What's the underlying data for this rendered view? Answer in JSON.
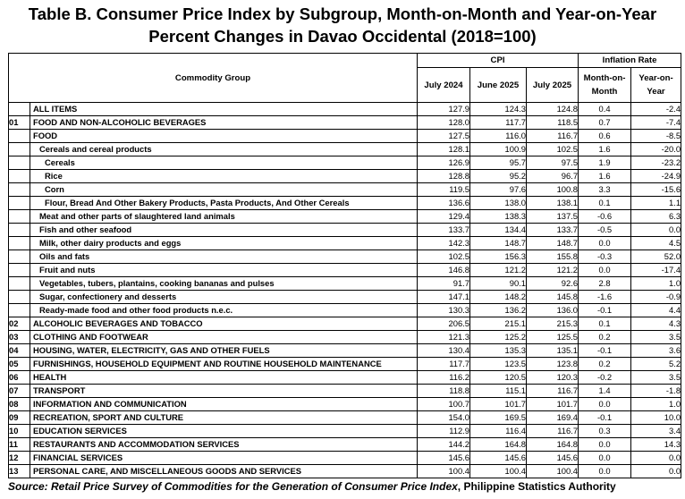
{
  "title_line1": "Table B. Consumer Price Index by Subgroup, Month-on-Month and Year-on-Year",
  "title_line2": "Percent Changes in Davao Occidental (2018=100)",
  "headers": {
    "commodity_group": "Commodity Group",
    "cpi": "CPI",
    "inflation_rate": "Inflation Rate",
    "july_2024": "July 2024",
    "june_2025": "June 2025",
    "july_2025": "July 2025",
    "mom_1": "Month-on-",
    "mom_2": "Month",
    "yoy_1": "Year-on-",
    "yoy_2": "Year"
  },
  "rows": [
    {
      "code": "",
      "name": "ALL ITEMS",
      "level": 0,
      "bold": true,
      "jul24": "127.9",
      "jun25": "124.3",
      "jul25": "124.8",
      "mom": "0.4",
      "yoy": "-2.4"
    },
    {
      "code": "01",
      "name": "FOOD AND NON-ALCOHOLIC BEVERAGES",
      "level": 0,
      "bold": true,
      "jul24": "128.0",
      "jun25": "117.7",
      "jul25": "118.5",
      "mom": "0.7",
      "yoy": "-7.4"
    },
    {
      "code": "",
      "name": "FOOD",
      "level": 0,
      "bold": true,
      "jul24": "127.5",
      "jun25": "116.0",
      "jul25": "116.7",
      "mom": "0.6",
      "yoy": "-8.5"
    },
    {
      "code": "",
      "name": "Cereals and cereal products",
      "level": 1,
      "bold": true,
      "jul24": "128.1",
      "jun25": "100.9",
      "jul25": "102.5",
      "mom": "1.6",
      "yoy": "-20.0"
    },
    {
      "code": "",
      "name": "Cereals",
      "level": 2,
      "bold": true,
      "jul24": "126.9",
      "jun25": "95.7",
      "jul25": "97.5",
      "mom": "1.9",
      "yoy": "-23.2"
    },
    {
      "code": "",
      "name": "Rice",
      "level": 2,
      "bold": true,
      "jul24": "128.8",
      "jun25": "95.2",
      "jul25": "96.7",
      "mom": "1.6",
      "yoy": "-24.9"
    },
    {
      "code": "",
      "name": "Corn",
      "level": 2,
      "bold": true,
      "jul24": "119.5",
      "jun25": "97.6",
      "jul25": "100.8",
      "mom": "3.3",
      "yoy": "-15.6"
    },
    {
      "code": "",
      "name": "Flour, Bread And Other Bakery Products, Pasta Products, And Other Cereals",
      "level": 2,
      "bold": true,
      "jul24": "136.6",
      "jun25": "138.0",
      "jul25": "138.1",
      "mom": "0.1",
      "yoy": "1.1"
    },
    {
      "code": "",
      "name": "Meat and other parts of slaughtered land animals",
      "level": 1,
      "bold": true,
      "jul24": "129.4",
      "jun25": "138.3",
      "jul25": "137.5",
      "mom": "-0.6",
      "yoy": "6.3"
    },
    {
      "code": "",
      "name": "Fish and other seafood",
      "level": 1,
      "bold": true,
      "jul24": "133.7",
      "jun25": "134.4",
      "jul25": "133.7",
      "mom": "-0.5",
      "yoy": "0.0"
    },
    {
      "code": "",
      "name": "Milk, other dairy products and eggs",
      "level": 1,
      "bold": true,
      "jul24": "142.3",
      "jun25": "148.7",
      "jul25": "148.7",
      "mom": "0.0",
      "yoy": "4.5"
    },
    {
      "code": "",
      "name": "Oils and fats",
      "level": 1,
      "bold": true,
      "jul24": "102.5",
      "jun25": "156.3",
      "jul25": "155.8",
      "mom": "-0.3",
      "yoy": "52.0"
    },
    {
      "code": "",
      "name": "Fruit and nuts",
      "level": 1,
      "bold": true,
      "jul24": "146.8",
      "jun25": "121.2",
      "jul25": "121.2",
      "mom": "0.0",
      "yoy": "-17.4"
    },
    {
      "code": "",
      "name": "Vegetables, tubers, plantains, cooking bananas and pulses",
      "level": 1,
      "bold": true,
      "jul24": "91.7",
      "jun25": "90.1",
      "jul25": "92.6",
      "mom": "2.8",
      "yoy": "1.0"
    },
    {
      "code": "",
      "name": "Sugar, confectionery and desserts",
      "level": 1,
      "bold": true,
      "jul24": "147.1",
      "jun25": "148.2",
      "jul25": "145.8",
      "mom": "-1.6",
      "yoy": "-0.9"
    },
    {
      "code": "",
      "name": "Ready-made food and other food products n.e.c.",
      "level": 1,
      "bold": true,
      "jul24": "130.3",
      "jun25": "136.2",
      "jul25": "136.0",
      "mom": "-0.1",
      "yoy": "4.4"
    },
    {
      "code": "02",
      "name": "ALCOHOLIC BEVERAGES  AND TOBACCO",
      "level": 0,
      "bold": true,
      "jul24": "206.5",
      "jun25": "215.1",
      "jul25": "215.3",
      "mom": "0.1",
      "yoy": "4.3"
    },
    {
      "code": "03",
      "name": "CLOTHING AND FOOTWEAR",
      "level": 0,
      "bold": true,
      "jul24": "121.3",
      "jun25": "125.2",
      "jul25": "125.5",
      "mom": "0.2",
      "yoy": "3.5"
    },
    {
      "code": "04",
      "name": "HOUSING, WATER, ELECTRICITY, GAS AND OTHER FUELS",
      "level": 0,
      "bold": true,
      "jul24": "130.4",
      "jun25": "135.3",
      "jul25": "135.1",
      "mom": "-0.1",
      "yoy": "3.6"
    },
    {
      "code": "05",
      "name": "FURNISHINGS, HOUSEHOLD EQUIPMENT AND ROUTINE HOUSEHOLD MAINTENANCE",
      "level": 0,
      "bold": true,
      "jul24": "117.7",
      "jun25": "123.5",
      "jul25": "123.8",
      "mom": "0.2",
      "yoy": "5.2"
    },
    {
      "code": "06",
      "name": "HEALTH",
      "level": 0,
      "bold": true,
      "jul24": "116.2",
      "jun25": "120.5",
      "jul25": "120.3",
      "mom": "-0.2",
      "yoy": "3.5"
    },
    {
      "code": "07",
      "name": "TRANSPORT",
      "level": 0,
      "bold": true,
      "jul24": "118.8",
      "jun25": "115.1",
      "jul25": "116.7",
      "mom": "1.4",
      "yoy": "-1.8"
    },
    {
      "code": "08",
      "name": "INFORMATION AND COMMUNICATION",
      "level": 0,
      "bold": true,
      "jul24": "100.7",
      "jun25": "101.7",
      "jul25": "101.7",
      "mom": "0.0",
      "yoy": "1.0"
    },
    {
      "code": "09",
      "name": "RECREATION, SPORT AND CULTURE",
      "level": 0,
      "bold": true,
      "jul24": "154.0",
      "jun25": "169.5",
      "jul25": "169.4",
      "mom": "-0.1",
      "yoy": "10.0"
    },
    {
      "code": "10",
      "name": "EDUCATION SERVICES",
      "level": 0,
      "bold": true,
      "jul24": "112.9",
      "jun25": "116.4",
      "jul25": "116.7",
      "mom": "0.3",
      "yoy": "3.4"
    },
    {
      "code": "11",
      "name": "RESTAURANTS AND ACCOMMODATION SERVICES",
      "level": 0,
      "bold": true,
      "jul24": "144.2",
      "jun25": "164.8",
      "jul25": "164.8",
      "mom": "0.0",
      "yoy": "14.3"
    },
    {
      "code": "12",
      "name": "FINANCIAL SERVICES",
      "level": 0,
      "bold": true,
      "jul24": "145.6",
      "jun25": "145.6",
      "jul25": "145.6",
      "mom": "0.0",
      "yoy": "0.0"
    },
    {
      "code": "13",
      "name": "PERSONAL CARE, AND MISCELLANEOUS GOODS AND SERVICES",
      "level": 0,
      "bold": true,
      "jul24": "100.4",
      "jun25": "100.4",
      "jul25": "100.4",
      "mom": "0.0",
      "yoy": "0.0"
    }
  ],
  "source_prefix": "Source: ",
  "source_italic": "Retail Price Survey of Commodities for the Generation of Consumer Price Index",
  "source_suffix": ", Philippine Statistics Authority"
}
